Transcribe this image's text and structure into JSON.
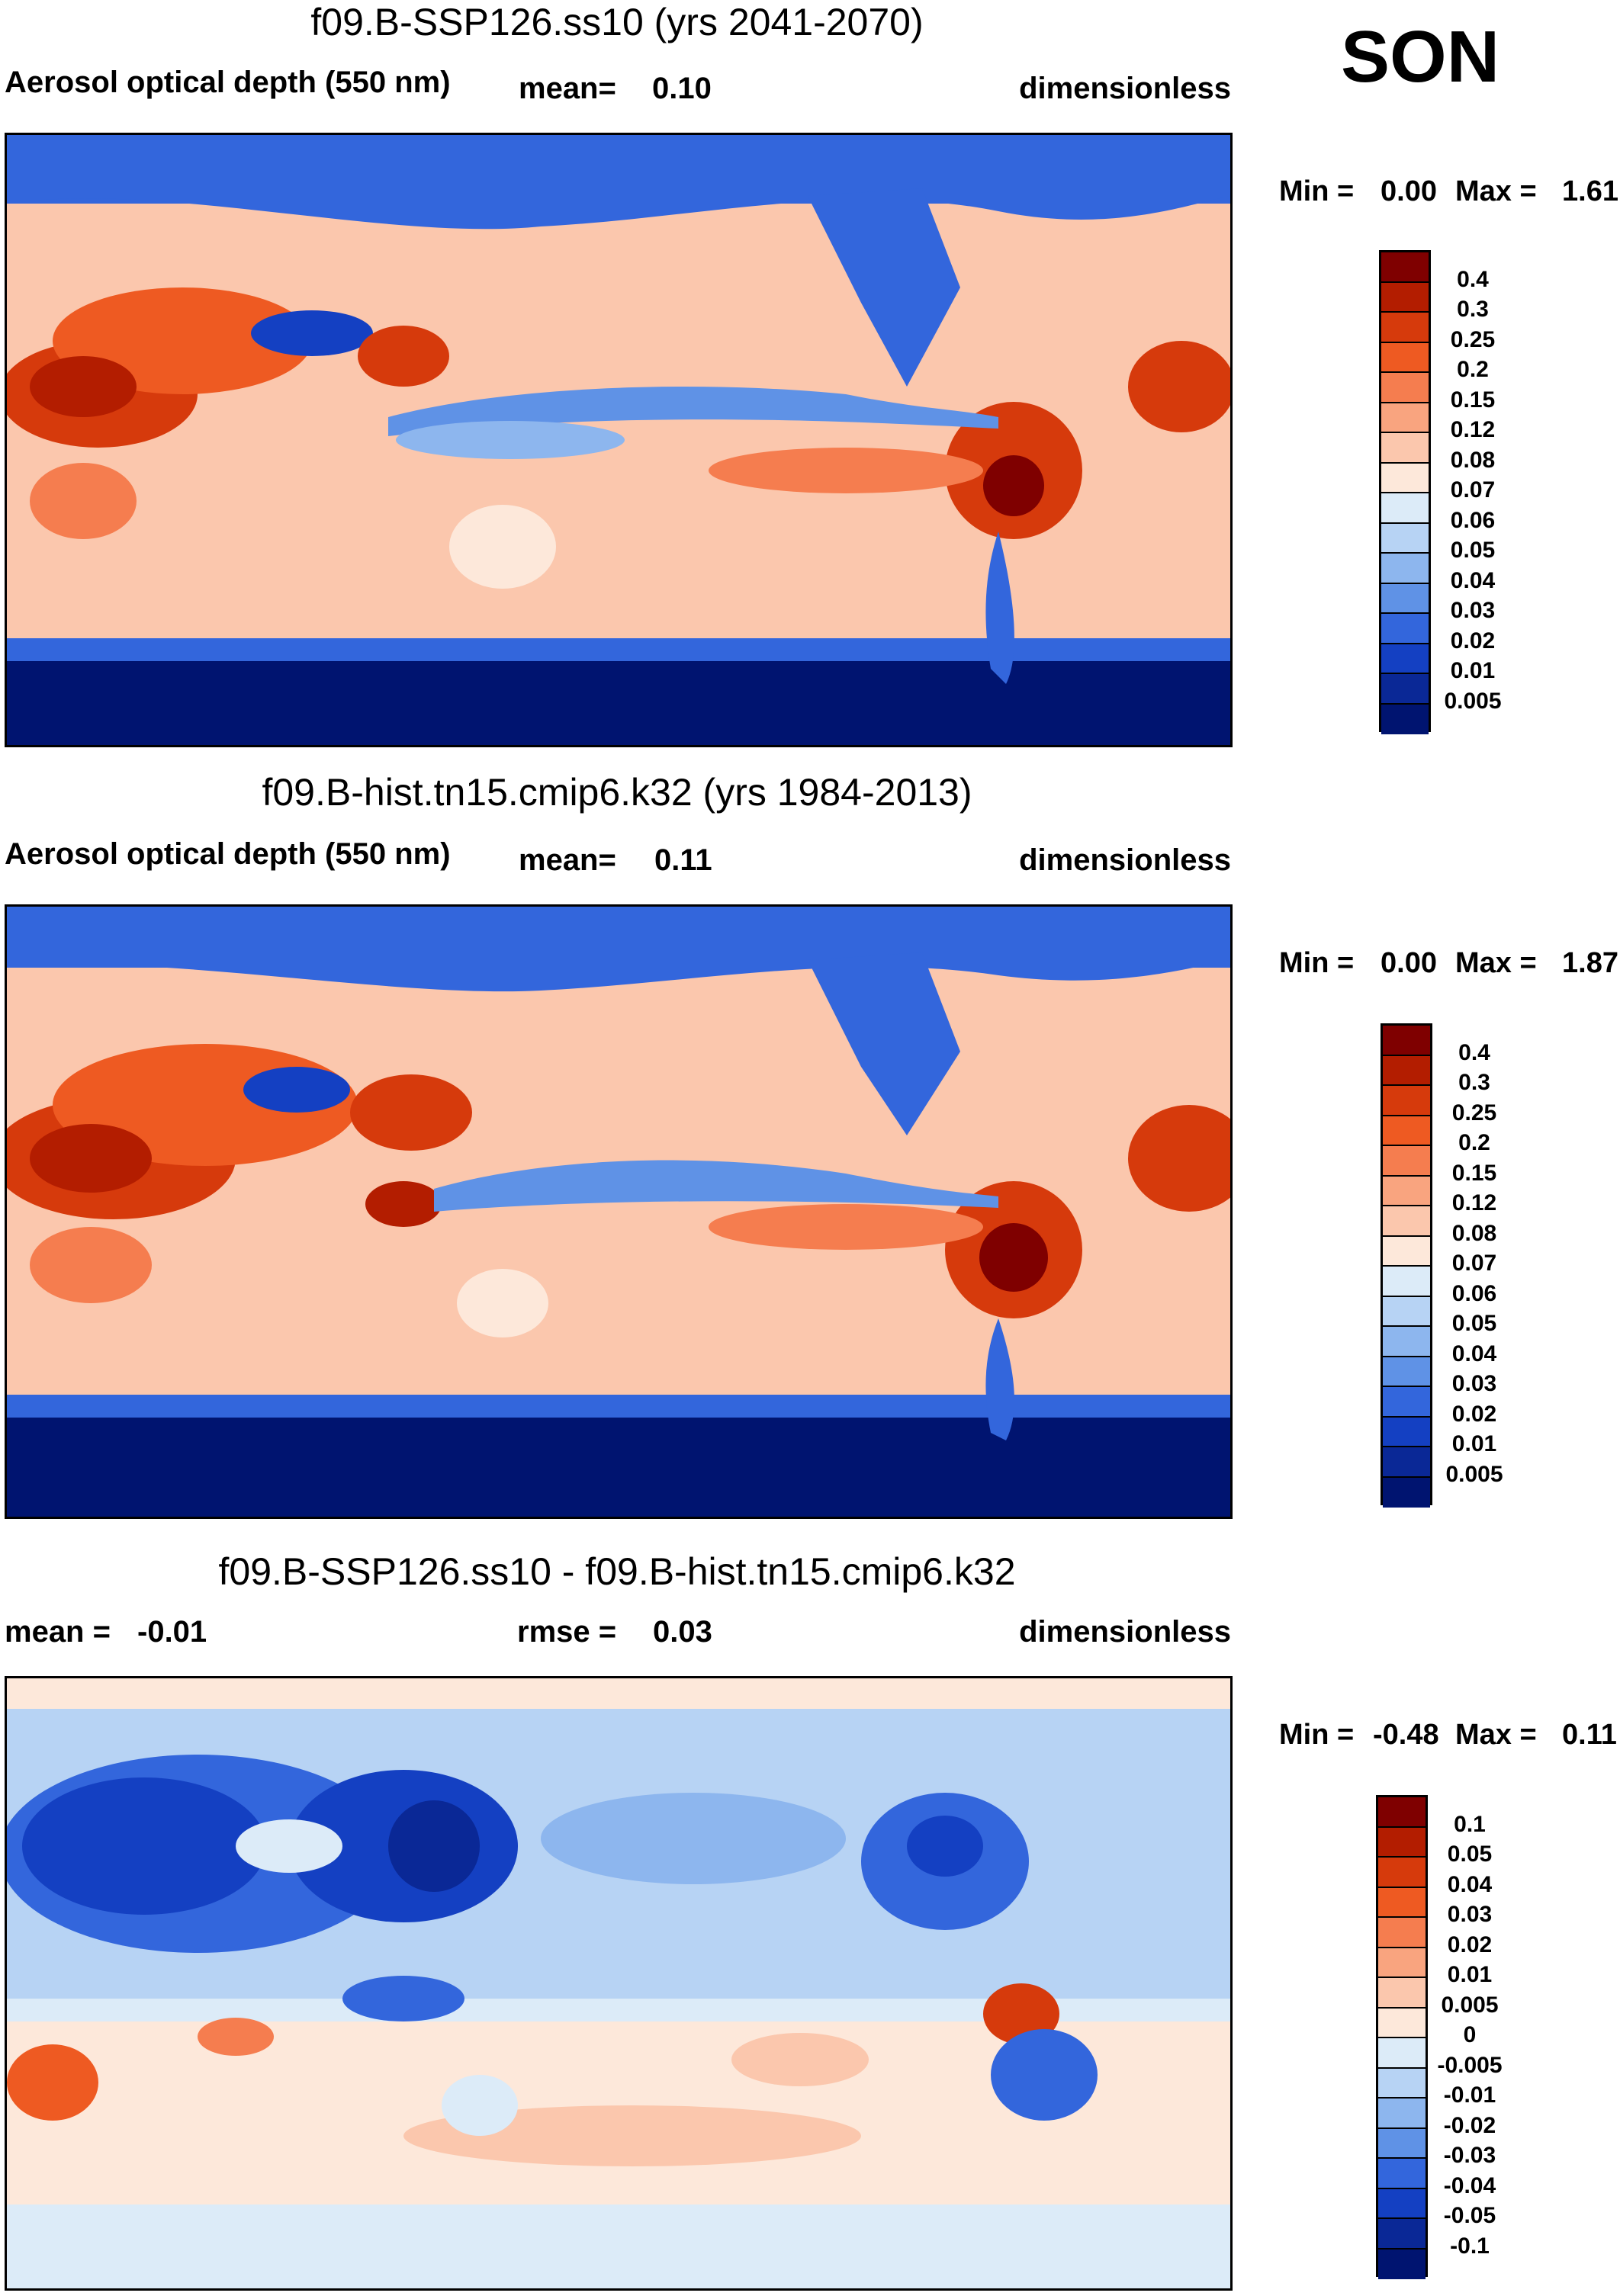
{
  "season": "SON",
  "panels": [
    {
      "title": "f09.B-SSP126.ss10 (yrs 2041-2070)",
      "variable": "Aerosol optical depth (550 nm)",
      "stat_label": "mean=",
      "stat_value": "0.10",
      "units": "dimensionless",
      "min_label": "Min =",
      "min_value": "0.00",
      "max_label": "Max =",
      "max_value": "1.61",
      "colorbar_key": "abs"
    },
    {
      "title": "f09.B-hist.tn15.cmip6.k32 (yrs 1984-2013)",
      "variable": "Aerosol optical depth (550 nm)",
      "stat_label": "mean=",
      "stat_value": "0.11",
      "units": "dimensionless",
      "min_label": "Min =",
      "min_value": "0.00",
      "max_label": "Max =",
      "max_value": "1.87",
      "colorbar_key": "abs"
    },
    {
      "title": "f09.B-SSP126.ss10 - f09.B-hist.tn15.cmip6.k32",
      "mean_label": "mean =",
      "mean_value": "-0.01",
      "rmse_label": "rmse =",
      "rmse_value": "0.03",
      "units": "dimensionless",
      "min_label": "Min =",
      "min_value": "-0.48",
      "max_label": "Max =",
      "max_value": "0.11",
      "colorbar_key": "diff"
    }
  ],
  "colorbars": {
    "abs": {
      "levels": [
        "0.4",
        "0.3",
        "0.25",
        "0.2",
        "0.15",
        "0.12",
        "0.08",
        "0.07",
        "0.06",
        "0.05",
        "0.04",
        "0.03",
        "0.02",
        "0.01",
        "0.005"
      ],
      "colors": [
        "#7f0000",
        "#b31d00",
        "#d63a0c",
        "#ee5a22",
        "#f57d4f",
        "#f9a47f",
        "#fbc7ad",
        "#fde8da",
        "#dcebf8",
        "#b7d3f4",
        "#8db6ee",
        "#5f92e6",
        "#3366dc",
        "#1440c2",
        "#0a2896",
        "#001470"
      ]
    },
    "diff": {
      "levels": [
        "0.1",
        "0.05",
        "0.04",
        "0.03",
        "0.02",
        "0.01",
        "0.005",
        "0",
        "-0.005",
        "-0.01",
        "-0.02",
        "-0.03",
        "-0.04",
        "-0.05",
        "-0.1"
      ],
      "colors": [
        "#7f0000",
        "#b31d00",
        "#d63a0c",
        "#ee5a22",
        "#f57d4f",
        "#f9a47f",
        "#fbc7ad",
        "#fde8da",
        "#dcebf8",
        "#b7d3f4",
        "#8db6ee",
        "#5f92e6",
        "#3366dc",
        "#1440c2",
        "#0a2896",
        "#001470"
      ]
    }
  },
  "chart_data": [
    {
      "type": "heatmap",
      "title": "f09.B-SSP126.ss10 (yrs 2041-2070)",
      "subtitle": "Aerosol optical depth (550 nm)",
      "units": "dimensionless",
      "mean": 0.1,
      "min": 0.0,
      "max": 1.61,
      "season": "SON",
      "contour_levels": [
        0.005,
        0.01,
        0.02,
        0.03,
        0.04,
        0.05,
        0.06,
        0.07,
        0.08,
        0.12,
        0.15,
        0.2,
        0.25,
        0.3,
        0.4
      ]
    },
    {
      "type": "heatmap",
      "title": "f09.B-hist.tn15.cmip6.k32 (yrs 1984-2013)",
      "subtitle": "Aerosol optical depth (550 nm)",
      "units": "dimensionless",
      "mean": 0.11,
      "min": 0.0,
      "max": 1.87,
      "season": "SON",
      "contour_levels": [
        0.005,
        0.01,
        0.02,
        0.03,
        0.04,
        0.05,
        0.06,
        0.07,
        0.08,
        0.12,
        0.15,
        0.2,
        0.25,
        0.3,
        0.4
      ]
    },
    {
      "type": "heatmap",
      "title": "f09.B-SSP126.ss10 - f09.B-hist.tn15.cmip6.k32",
      "units": "dimensionless",
      "mean": -0.01,
      "rmse": 0.03,
      "min": -0.48,
      "max": 0.11,
      "season": "SON",
      "contour_levels": [
        -0.1,
        -0.05,
        -0.04,
        -0.03,
        -0.02,
        -0.01,
        -0.005,
        0,
        0.005,
        0.01,
        0.02,
        0.03,
        0.04,
        0.05,
        0.1
      ]
    }
  ]
}
